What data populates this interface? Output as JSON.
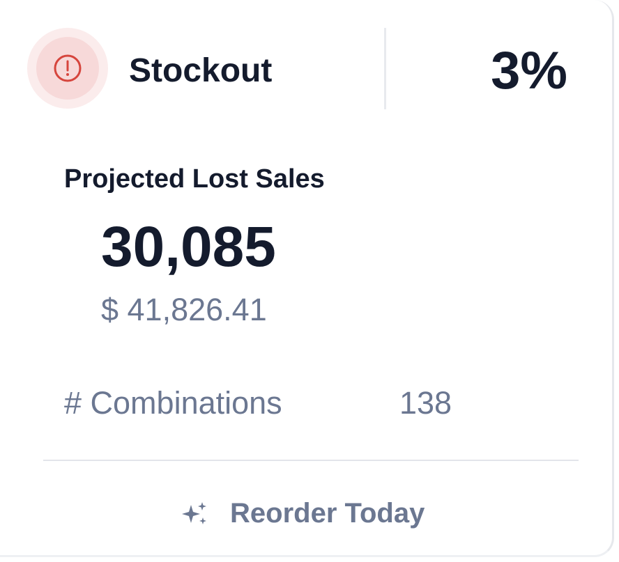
{
  "header": {
    "title": "Stockout",
    "percent": "3%"
  },
  "lost_sales": {
    "label": "Projected Lost Sales",
    "units": "30,085",
    "amount": "$ 41,826.41"
  },
  "combinations": {
    "label": "# Combinations",
    "value": "138"
  },
  "action": {
    "label": "Reorder Today"
  }
}
